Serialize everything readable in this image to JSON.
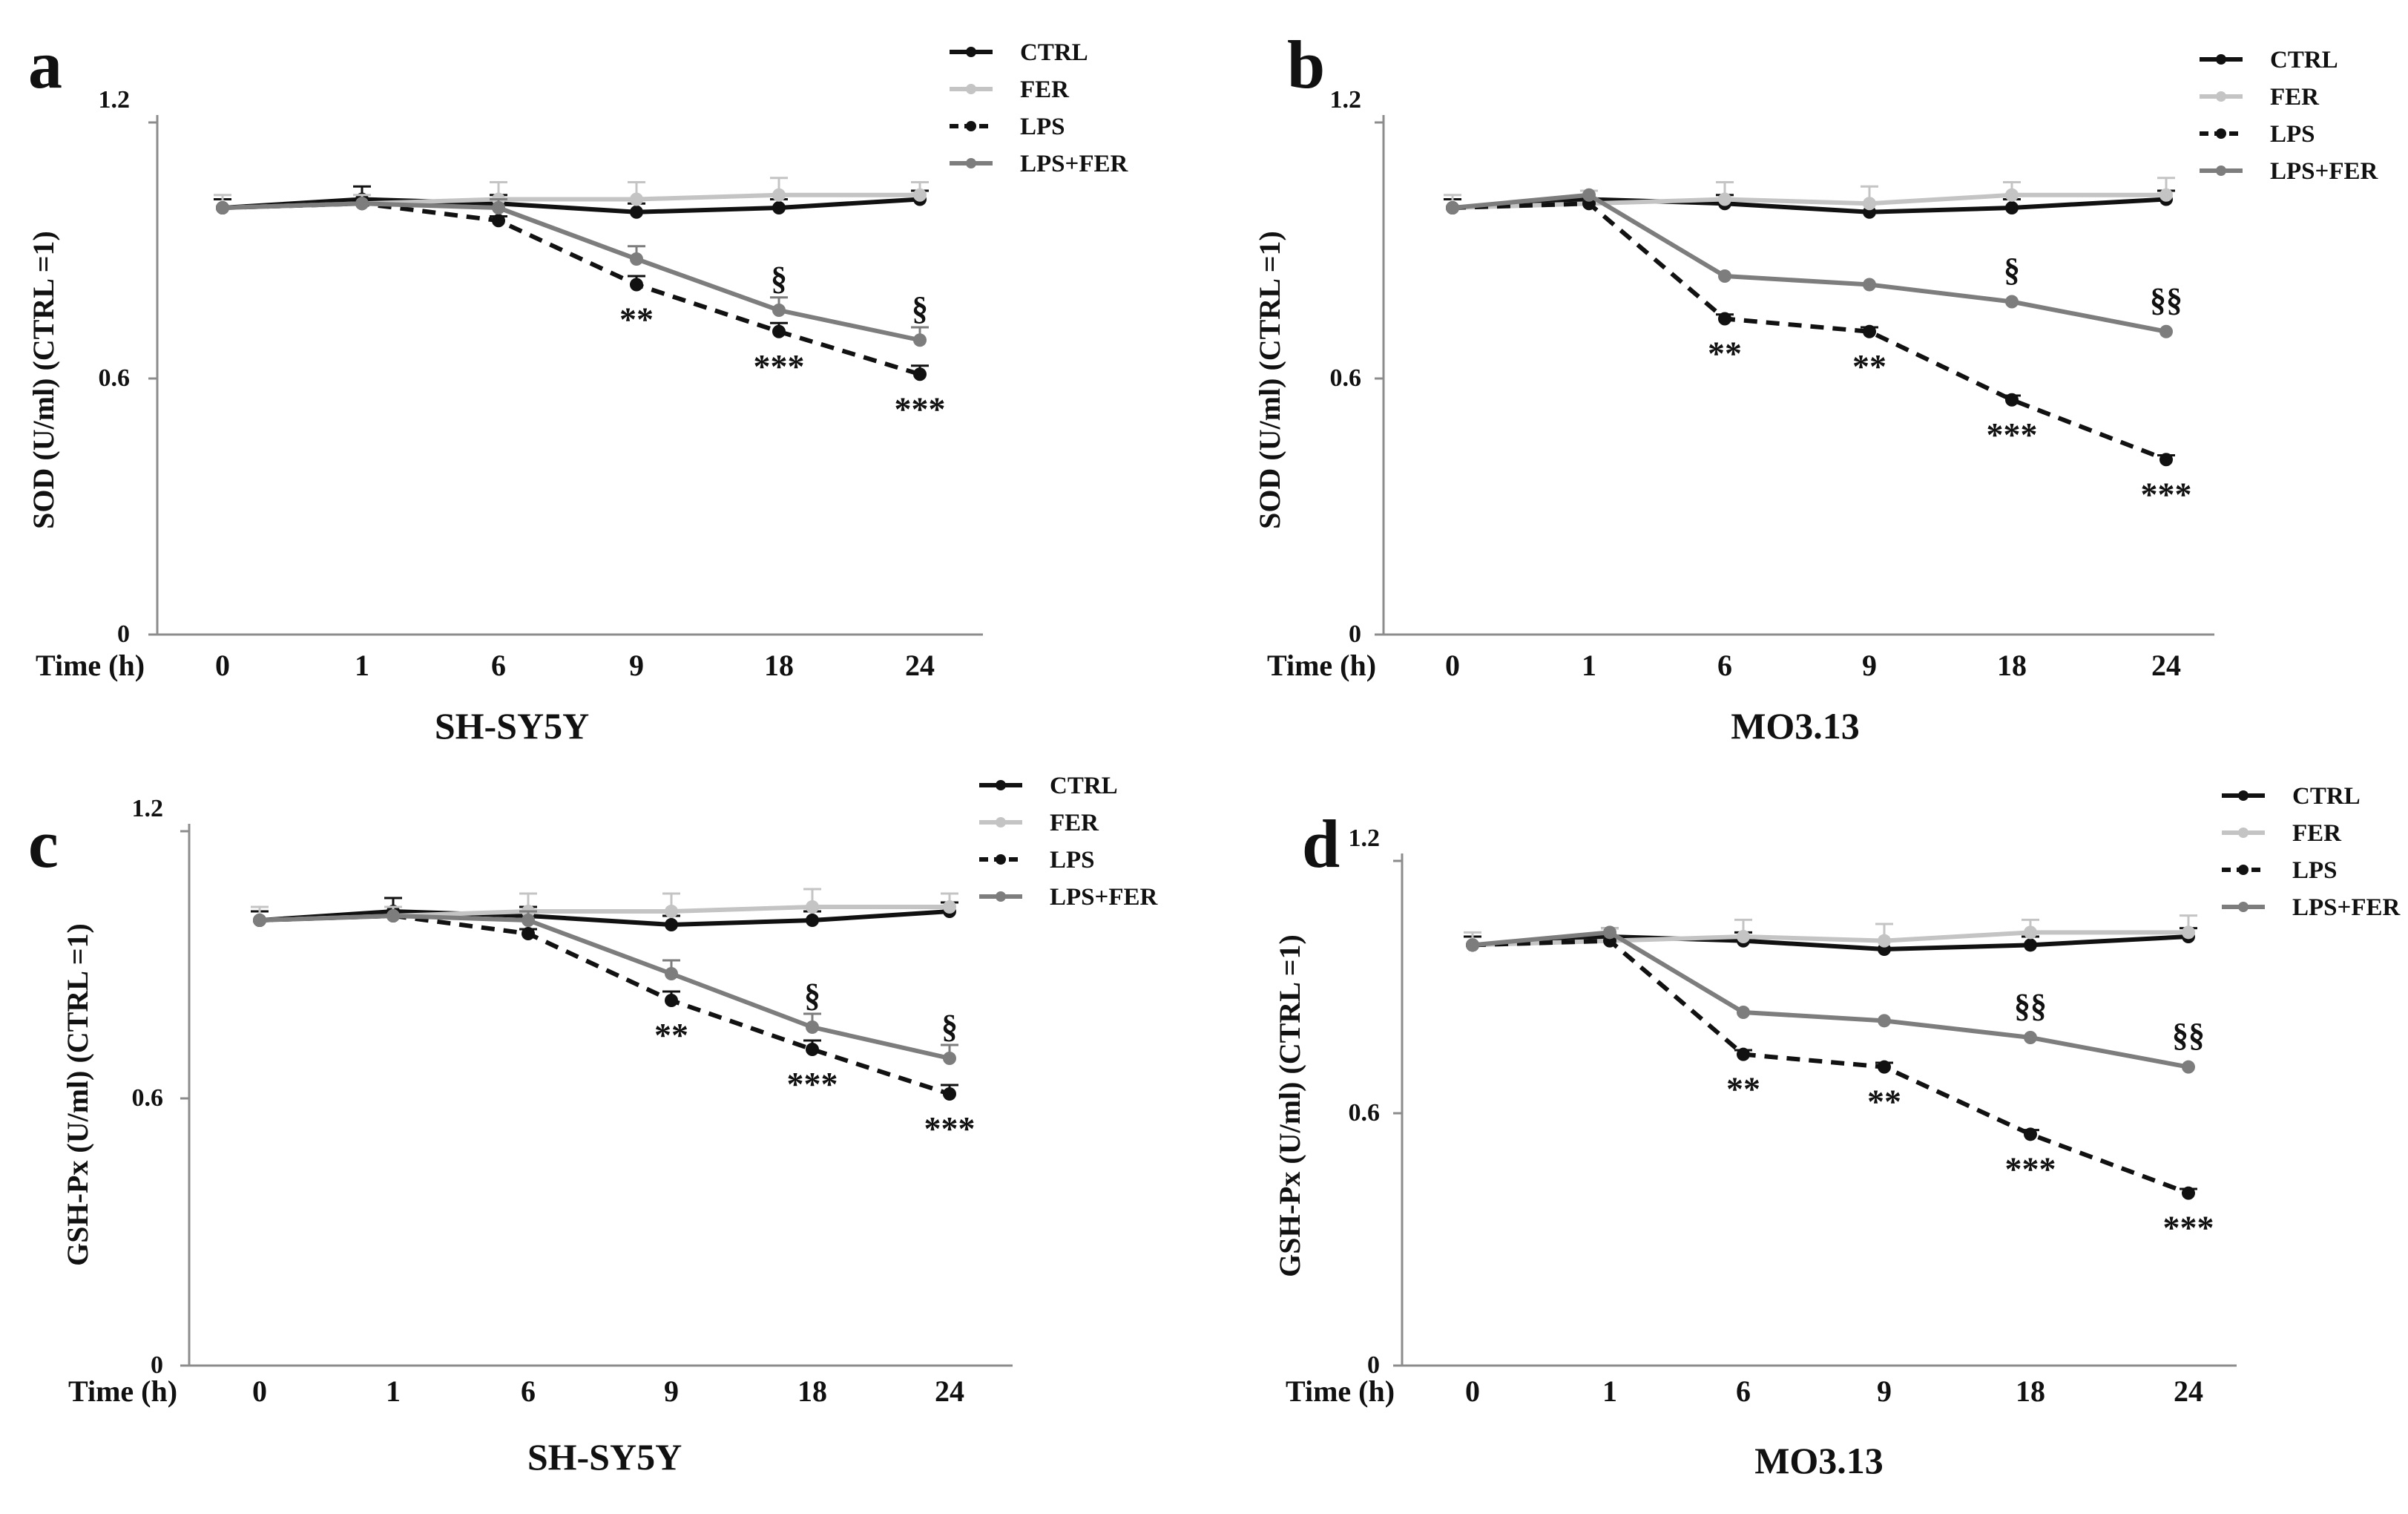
{
  "figure": {
    "x_axis_label": "Time (h)",
    "legend_names": [
      "CTRL",
      "FER",
      "LPS",
      "LPS+FER"
    ]
  },
  "colors": {
    "CTRL": "#111111",
    "FER": "#c4c4c4",
    "LPS": "#111111",
    "LPS+FER": "#7d7d7d",
    "axis": "#8c8c8c"
  },
  "chart_data": [
    {
      "type": "line",
      "panel_letter": "a",
      "title": "SH-SY5Y",
      "xlabel": "Time (h)",
      "ylabel": "SOD (U/ml) (CTRL =1)",
      "categories": [
        "0",
        "1",
        "6",
        "9",
        "18",
        "24"
      ],
      "yticks": [
        "0",
        "0.6",
        "1.2"
      ],
      "ylim": [
        0,
        1.2
      ],
      "grid": false,
      "legend": "top-right",
      "series": [
        {
          "name": "CTRL",
          "style": "solid",
          "values": [
            1.0,
            1.02,
            1.01,
            0.99,
            1.0,
            1.02
          ],
          "errors": [
            0.02,
            0.03,
            0.02,
            0.02,
            0.02,
            0.02
          ]
        },
        {
          "name": "FER",
          "style": "solid",
          "values": [
            1.0,
            1.01,
            1.02,
            1.02,
            1.03,
            1.03
          ],
          "errors": [
            0.03,
            0.02,
            0.04,
            0.04,
            0.04,
            0.03
          ]
        },
        {
          "name": "LPS",
          "style": "dashed",
          "values": [
            1.0,
            1.01,
            0.97,
            0.82,
            0.71,
            0.61
          ],
          "errors": [
            0.0,
            0.0,
            0.01,
            0.02,
            0.02,
            0.02
          ]
        },
        {
          "name": "LPS+FER",
          "style": "solid",
          "values": [
            1.0,
            1.01,
            1.0,
            0.88,
            0.76,
            0.69
          ],
          "errors": [
            0.0,
            0.0,
            0.02,
            0.03,
            0.03,
            0.03
          ]
        }
      ],
      "annotations": [
        {
          "category": "9",
          "value": 0.82,
          "text": "**",
          "placement": "below"
        },
        {
          "category": "18",
          "value": 0.71,
          "text": "***",
          "placement": "below"
        },
        {
          "category": "24",
          "value": 0.61,
          "text": "***",
          "placement": "below"
        },
        {
          "category": "18",
          "value": 0.76,
          "text": "§",
          "placement": "above"
        },
        {
          "category": "24",
          "value": 0.69,
          "text": "§",
          "placement": "above"
        }
      ]
    },
    {
      "type": "line",
      "panel_letter": "b",
      "title": "MO3.13",
      "xlabel": "Time (h)",
      "ylabel": "SOD (U/ml) (CTRL =1)",
      "categories": [
        "0",
        "1",
        "6",
        "9",
        "18",
        "24"
      ],
      "yticks": [
        "0",
        "0.6",
        "1.2"
      ],
      "ylim": [
        0,
        1.2
      ],
      "grid": false,
      "legend": "top-right",
      "series": [
        {
          "name": "CTRL",
          "style": "solid",
          "values": [
            1.0,
            1.02,
            1.01,
            0.99,
            1.0,
            1.02
          ],
          "errors": [
            0.02,
            0.02,
            0.02,
            0.02,
            0.02,
            0.02
          ]
        },
        {
          "name": "FER",
          "style": "solid",
          "values": [
            1.0,
            1.01,
            1.02,
            1.01,
            1.03,
            1.03
          ],
          "errors": [
            0.03,
            0.03,
            0.04,
            0.04,
            0.03,
            0.04
          ]
        },
        {
          "name": "LPS",
          "style": "dashed",
          "values": [
            1.0,
            1.01,
            0.74,
            0.71,
            0.55,
            0.41
          ],
          "errors": [
            0.0,
            0.0,
            0.01,
            0.01,
            0.01,
            0.01
          ]
        },
        {
          "name": "LPS+FER",
          "style": "solid",
          "values": [
            1.0,
            1.03,
            0.84,
            0.82,
            0.78,
            0.71
          ],
          "errors": [
            0.0,
            0.0,
            0.0,
            0.0,
            0.0,
            0.0
          ]
        }
      ],
      "annotations": [
        {
          "category": "6",
          "value": 0.74,
          "text": "**",
          "placement": "below"
        },
        {
          "category": "9",
          "value": 0.71,
          "text": "**",
          "placement": "below"
        },
        {
          "category": "18",
          "value": 0.55,
          "text": "***",
          "placement": "below"
        },
        {
          "category": "24",
          "value": 0.41,
          "text": "***",
          "placement": "below"
        },
        {
          "category": "18",
          "value": 0.78,
          "text": "§",
          "placement": "above"
        },
        {
          "category": "24",
          "value": 0.71,
          "text": "§§",
          "placement": "above"
        }
      ]
    },
    {
      "type": "line",
      "panel_letter": "c",
      "title": "SH-SY5Y",
      "xlabel": "Time (h)",
      "ylabel": "GSH-Px (U/ml) (CTRL =1)",
      "categories": [
        "0",
        "1",
        "6",
        "9",
        "18",
        "24"
      ],
      "yticks": [
        "0",
        "0.6",
        "1.2"
      ],
      "ylim": [
        0,
        1.2
      ],
      "grid": false,
      "legend": "top-right",
      "series": [
        {
          "name": "CTRL",
          "style": "solid",
          "values": [
            1.0,
            1.02,
            1.01,
            0.99,
            1.0,
            1.02
          ],
          "errors": [
            0.02,
            0.03,
            0.02,
            0.02,
            0.02,
            0.02
          ]
        },
        {
          "name": "FER",
          "style": "solid",
          "values": [
            1.0,
            1.01,
            1.02,
            1.02,
            1.03,
            1.03
          ],
          "errors": [
            0.03,
            0.02,
            0.04,
            0.04,
            0.04,
            0.03
          ]
        },
        {
          "name": "LPS",
          "style": "dashed",
          "values": [
            1.0,
            1.01,
            0.97,
            0.82,
            0.71,
            0.61
          ],
          "errors": [
            0.0,
            0.0,
            0.01,
            0.02,
            0.02,
            0.02
          ]
        },
        {
          "name": "LPS+FER",
          "style": "solid",
          "values": [
            1.0,
            1.01,
            1.0,
            0.88,
            0.76,
            0.69
          ],
          "errors": [
            0.0,
            0.0,
            0.02,
            0.03,
            0.03,
            0.03
          ]
        }
      ],
      "annotations": [
        {
          "category": "9",
          "value": 0.82,
          "text": "**",
          "placement": "below"
        },
        {
          "category": "18",
          "value": 0.71,
          "text": "***",
          "placement": "below"
        },
        {
          "category": "24",
          "value": 0.61,
          "text": "***",
          "placement": "below"
        },
        {
          "category": "18",
          "value": 0.76,
          "text": "§",
          "placement": "above"
        },
        {
          "category": "24",
          "value": 0.69,
          "text": "§",
          "placement": "above"
        }
      ]
    },
    {
      "type": "line",
      "panel_letter": "d",
      "title": "MO3.13",
      "xlabel": "Time (h)",
      "ylabel": "GSH-Px (U/ml) (CTRL =1)",
      "categories": [
        "0",
        "1",
        "6",
        "9",
        "18",
        "24"
      ],
      "yticks": [
        "0",
        "0.6",
        "1.2"
      ],
      "ylim": [
        0,
        1.2
      ],
      "grid": false,
      "legend": "top-right",
      "series": [
        {
          "name": "CTRL",
          "style": "solid",
          "values": [
            1.0,
            1.02,
            1.01,
            0.99,
            1.0,
            1.02
          ],
          "errors": [
            0.02,
            0.02,
            0.02,
            0.02,
            0.02,
            0.02
          ]
        },
        {
          "name": "FER",
          "style": "solid",
          "values": [
            1.0,
            1.01,
            1.02,
            1.01,
            1.03,
            1.03
          ],
          "errors": [
            0.03,
            0.03,
            0.04,
            0.04,
            0.03,
            0.04
          ]
        },
        {
          "name": "LPS",
          "style": "dashed",
          "values": [
            1.0,
            1.01,
            0.74,
            0.71,
            0.55,
            0.41
          ],
          "errors": [
            0.0,
            0.0,
            0.01,
            0.01,
            0.01,
            0.01
          ]
        },
        {
          "name": "LPS+FER",
          "style": "solid",
          "values": [
            1.0,
            1.03,
            0.84,
            0.82,
            0.78,
            0.71
          ],
          "errors": [
            0.0,
            0.0,
            0.0,
            0.0,
            0.0,
            0.0
          ]
        }
      ],
      "annotations": [
        {
          "category": "6",
          "value": 0.74,
          "text": "**",
          "placement": "below"
        },
        {
          "category": "9",
          "value": 0.71,
          "text": "**",
          "placement": "below"
        },
        {
          "category": "18",
          "value": 0.55,
          "text": "***",
          "placement": "below"
        },
        {
          "category": "24",
          "value": 0.41,
          "text": "***",
          "placement": "below"
        },
        {
          "category": "18",
          "value": 0.78,
          "text": "§§",
          "placement": "above"
        },
        {
          "category": "24",
          "value": 0.71,
          "text": "§§",
          "placement": "above"
        }
      ]
    }
  ]
}
